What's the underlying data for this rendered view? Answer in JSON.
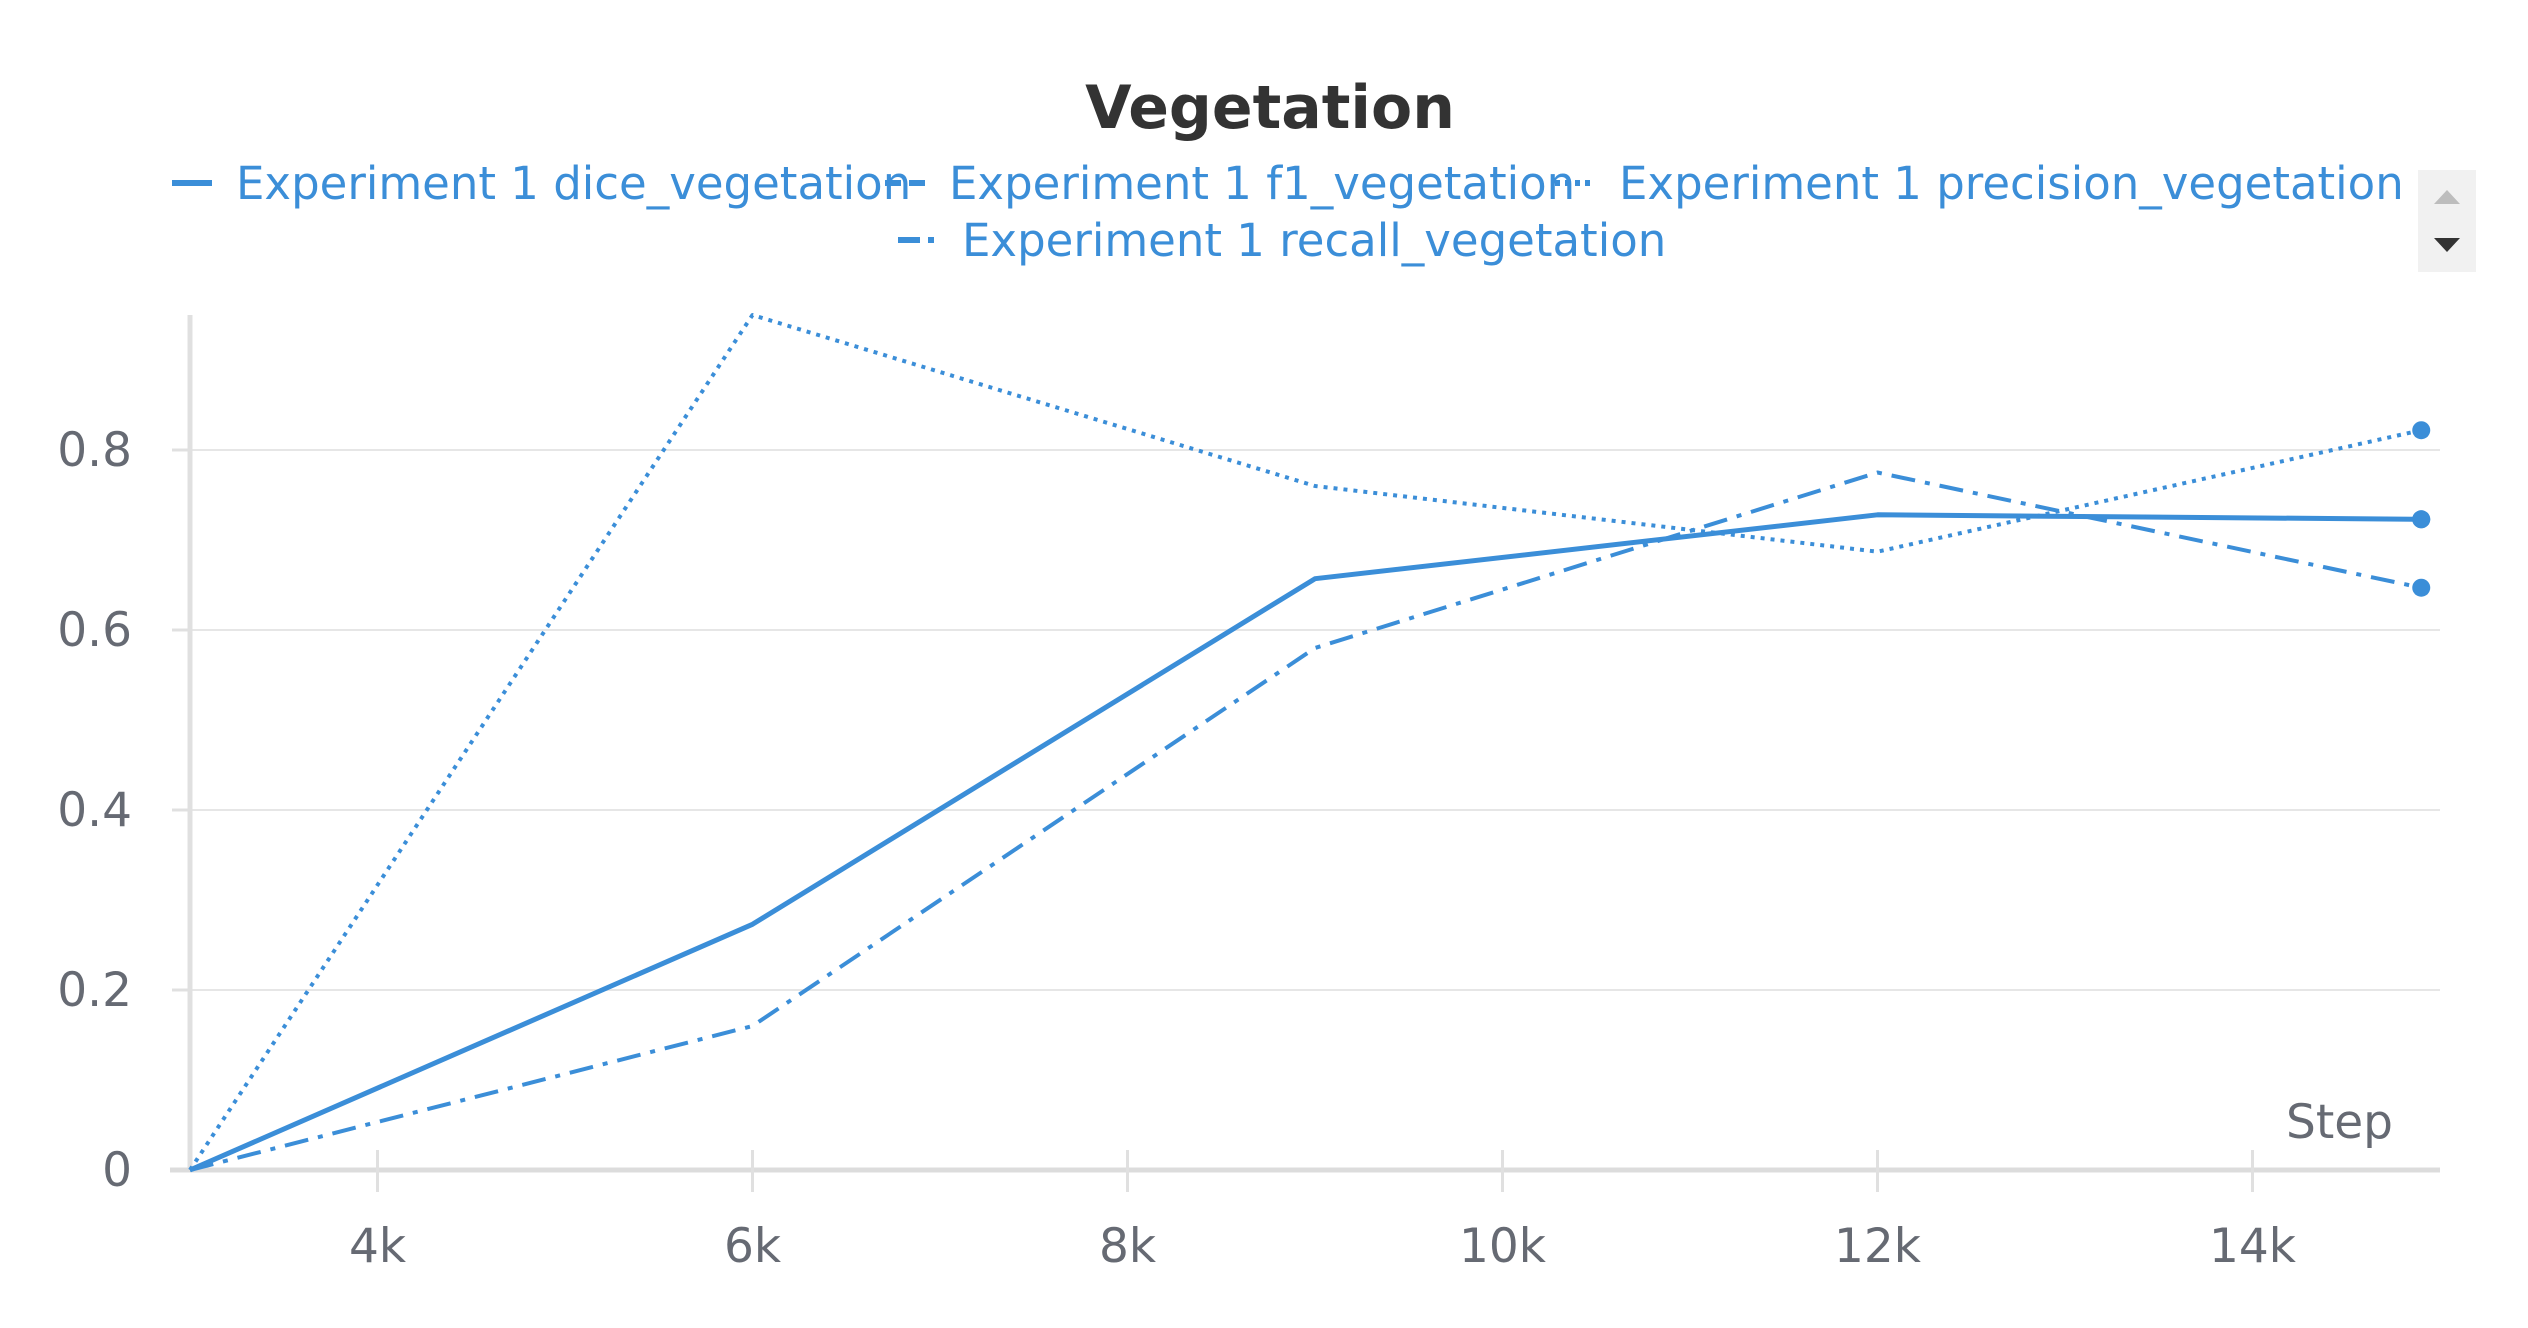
{
  "chart_data": {
    "type": "line",
    "title": "Vegetation",
    "xlabel": "Step",
    "ylabel": "",
    "xlim": [
      3000,
      15000
    ],
    "ylim": [
      0,
      0.95
    ],
    "x_ticks": [
      {
        "value": 4000,
        "label": "4k"
      },
      {
        "value": 6000,
        "label": "6k"
      },
      {
        "value": 8000,
        "label": "8k"
      },
      {
        "value": 10000,
        "label": "10k"
      },
      {
        "value": 12000,
        "label": "12k"
      },
      {
        "value": 14000,
        "label": "14k"
      }
    ],
    "y_ticks": [
      {
        "value": 0,
        "label": "0"
      },
      {
        "value": 0.2,
        "label": "0.2"
      },
      {
        "value": 0.4,
        "label": "0.4"
      },
      {
        "value": 0.6,
        "label": "0.6"
      },
      {
        "value": 0.8,
        "label": "0.8"
      }
    ],
    "grid": true,
    "legend_position": "top",
    "series": [
      {
        "name": "Experiment 1 dice_vegetation",
        "style": "solid",
        "color": "#3b8ed8",
        "x": [
          3000,
          6000,
          9000,
          12000,
          14900
        ],
        "y": [
          0,
          0.273,
          0.657,
          0.728,
          0.723
        ]
      },
      {
        "name": "Experiment 1 f1_vegetation",
        "style": "dashed",
        "color": "#3b8ed8",
        "x": [
          3000,
          6000,
          9000,
          12000,
          14900
        ],
        "y": [
          0,
          0.273,
          0.657,
          0.728,
          0.723
        ]
      },
      {
        "name": "Experiment 1 precision_vegetation",
        "style": "dotted",
        "color": "#3b8ed8",
        "x": [
          3000,
          6000,
          9000,
          12000,
          14900
        ],
        "y": [
          0,
          0.95,
          0.76,
          0.687,
          0.822
        ]
      },
      {
        "name": "Experiment 1 recall_vegetation",
        "style": "dashdot",
        "color": "#3b8ed8",
        "x": [
          3000,
          6000,
          9000,
          12000,
          14900
        ],
        "y": [
          0,
          0.16,
          0.58,
          0.775,
          0.647
        ]
      }
    ]
  },
  "legend_scroll": {
    "up_icon": "triangle-up-icon",
    "down_icon": "triangle-down-icon"
  }
}
